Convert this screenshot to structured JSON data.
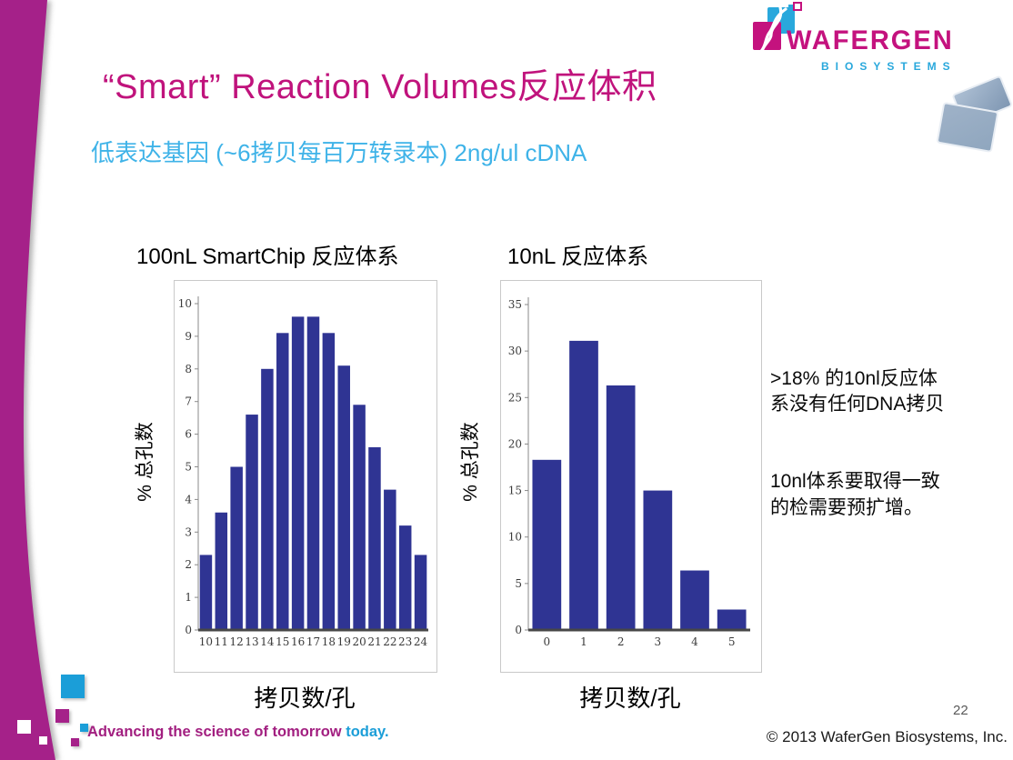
{
  "slide": {
    "title": "“Smart” Reaction Volumes反应体积",
    "subtitle": "低表达基因 (~6拷贝每百万转录本) 2ng/ul cDNA",
    "page_number": "22",
    "copyright": "© 2013 WaferGen Biosystems, Inc.",
    "tagline": {
      "main": "Advancing the science of tomorrow ",
      "accent": "today."
    }
  },
  "logo": {
    "name": "WAFERGEN",
    "sub": "BIOSYSTEMS"
  },
  "annotation": {
    "para1": ">18% 的10nl反应体\n系没有任何DNA拷贝",
    "para2": "10nl体系要取得一致\n的检需要预扩增。"
  },
  "chart_data": [
    {
      "type": "bar",
      "title": "100nL SmartChip 反应体系",
      "ylabel": "% 总孔数",
      "xlabel": "拷贝数/孔",
      "categories": [
        "10",
        "11",
        "12",
        "13",
        "14",
        "15",
        "16",
        "17",
        "18",
        "19",
        "20",
        "21",
        "22",
        "23",
        "24"
      ],
      "values": [
        2.3,
        3.6,
        5.0,
        6.6,
        8.0,
        9.1,
        9.6,
        9.6,
        9.1,
        8.1,
        6.9,
        5.6,
        4.3,
        3.2,
        2.3
      ],
      "ylim": [
        0,
        10
      ],
      "ystep": 1,
      "grid": false,
      "legend": "none"
    },
    {
      "type": "bar",
      "title": "10nL 反应体系",
      "ylabel": "% 总孔数",
      "xlabel": "拷贝数/孔",
      "categories": [
        "0",
        "1",
        "2",
        "3",
        "4",
        "5"
      ],
      "values": [
        18.3,
        31.1,
        26.3,
        15.0,
        6.4,
        2.2
      ],
      "ylim": [
        0,
        35
      ],
      "ystep": 5,
      "grid": false,
      "legend": "none"
    }
  ],
  "colors": {
    "title_magenta": "#C0137C",
    "subtitle_blue": "#3FB3E8",
    "bar": "#2F3493",
    "swoosh_magenta": "#A52189",
    "accent_blue": "#1B9ED8",
    "logo_magenta": "#C4127E",
    "logo_blue": "#29A8DC",
    "chart_border": "#C9C9C9"
  }
}
